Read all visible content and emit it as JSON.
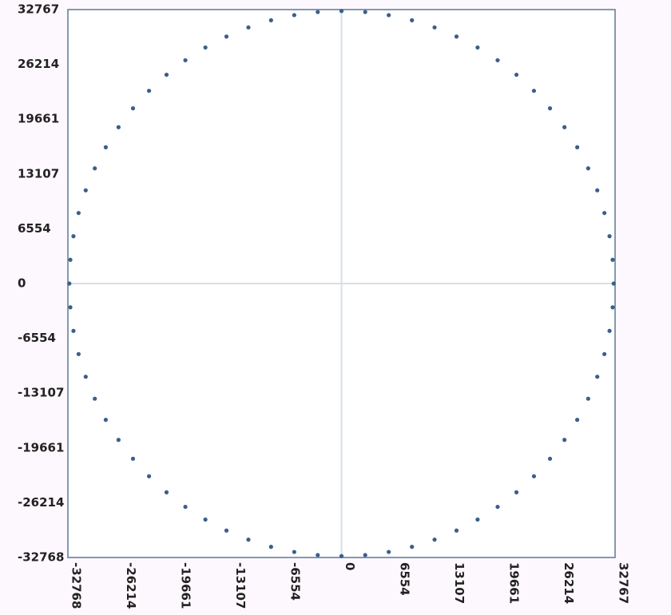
{
  "chart_data": {
    "type": "scatter",
    "x": [
      32600,
      32476,
      32104,
      31488,
      30634,
      29545,
      28232,
      26706,
      24972,
      23051,
      20955,
      18699,
      16300,
      13777,
      11149,
      8437,
      5659,
      2843,
      0,
      -2843,
      -5659,
      -8437,
      -11149,
      -13777,
      -16300,
      -18699,
      -20955,
      -23051,
      -24972,
      -26706,
      -28232,
      -29545,
      -30634,
      -31488,
      -32104,
      -32476,
      -32600,
      -32476,
      -32104,
      -31488,
      -30634,
      -29545,
      -28232,
      -26706,
      -24972,
      -23051,
      -20955,
      -18699,
      -16300,
      -13777,
      -11149,
      -8437,
      -5659,
      -2843,
      0,
      2843,
      5659,
      8437,
      11149,
      13777,
      16300,
      18699,
      20955,
      23051,
      24972,
      26706,
      28232,
      29545,
      30634,
      31488,
      32104,
      32476
    ],
    "y": [
      0,
      2843,
      5659,
      8437,
      11149,
      13777,
      16300,
      18699,
      20955,
      23051,
      24972,
      26706,
      28232,
      29545,
      30634,
      31488,
      32104,
      32476,
      32600,
      32476,
      32104,
      31488,
      30634,
      29545,
      28232,
      26706,
      24972,
      23051,
      20955,
      18699,
      16300,
      13777,
      11149,
      8437,
      5659,
      2843,
      0,
      -2843,
      -5659,
      -8437,
      -11149,
      -13777,
      -16300,
      -18699,
      -20955,
      -23051,
      -24972,
      -26706,
      -28232,
      -29545,
      -30634,
      -31488,
      -32104,
      -32476,
      -32600,
      -32476,
      -32104,
      -31488,
      -30634,
      -29545,
      -28232,
      -26706,
      -24972,
      -23051,
      -20955,
      -18699,
      -16300,
      -13777,
      -11149,
      -8437,
      -5659,
      -2843
    ],
    "color": "#3a5f8a",
    "xlim": [
      -32768,
      32767
    ],
    "ylim": [
      -32768,
      32767
    ],
    "xticks": [
      -32768,
      -26214,
      -19661,
      -13107,
      -6554,
      0,
      6554,
      13107,
      19661,
      26214,
      32767
    ],
    "yticks": [
      -32768,
      -26214,
      -19661,
      -13107,
      -6554,
      0,
      6554,
      13107,
      19661,
      26214,
      32767
    ],
    "zero_lines": true
  }
}
